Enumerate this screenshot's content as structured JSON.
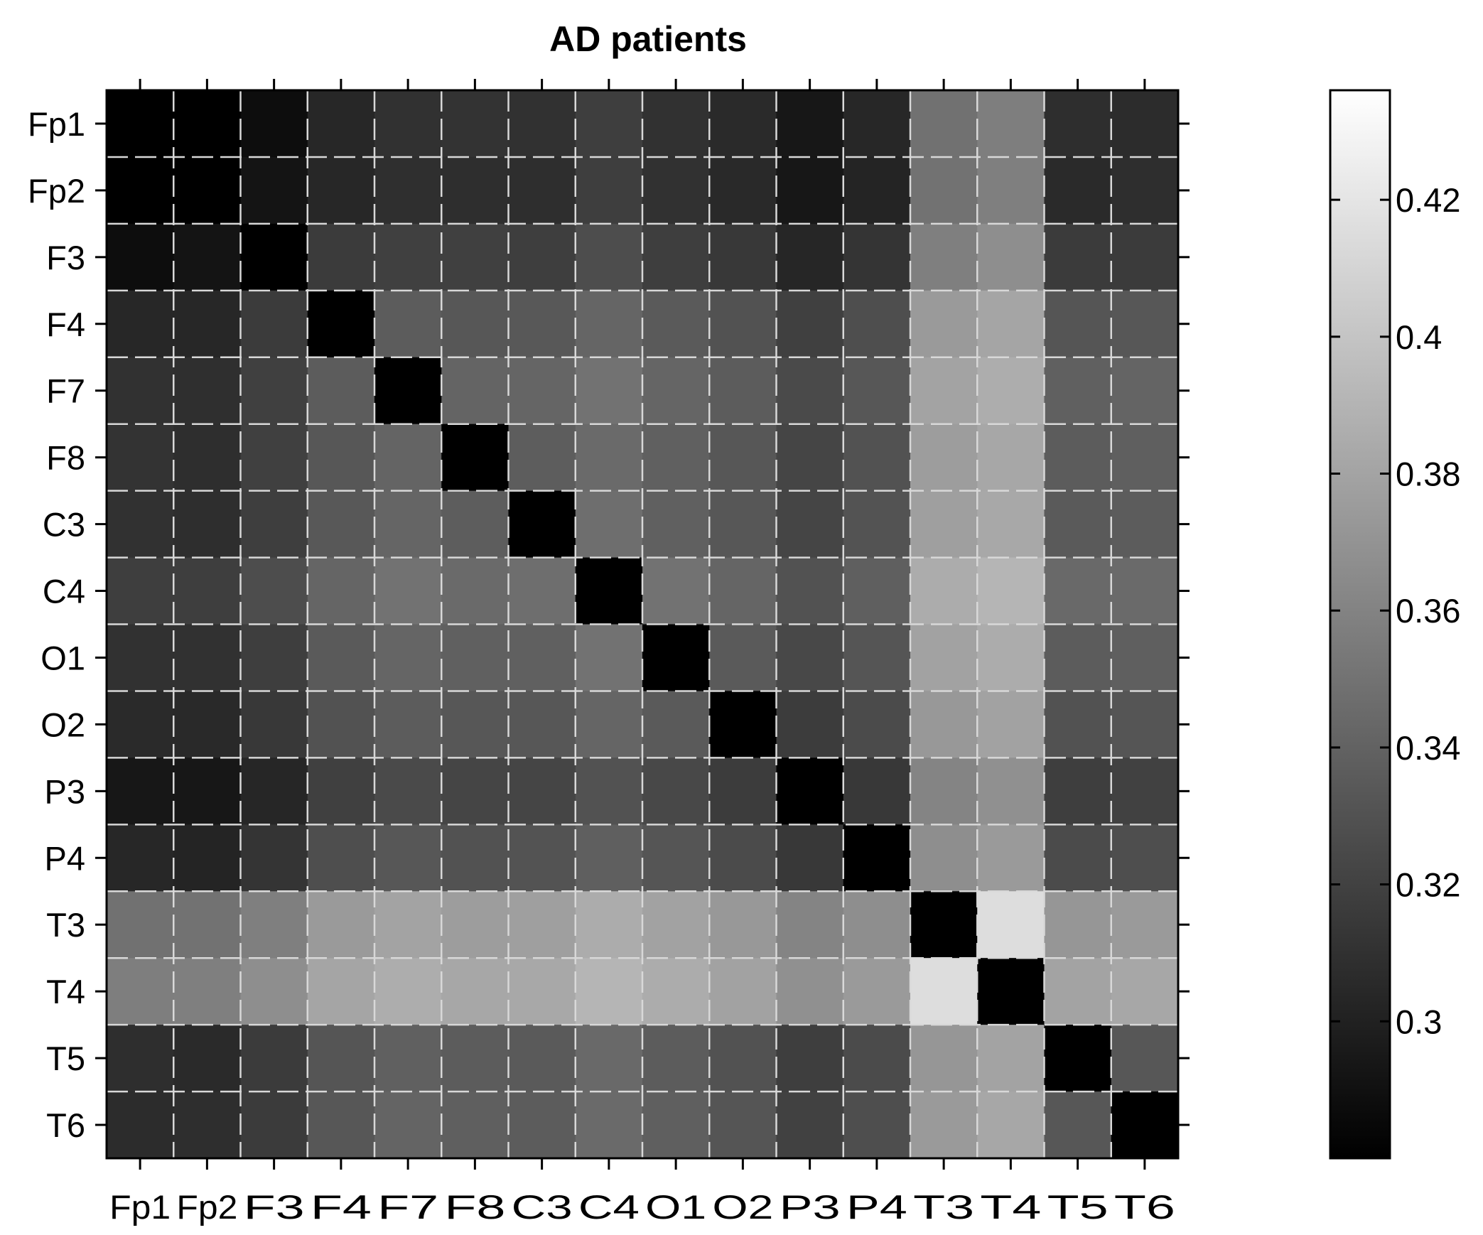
{
  "chart_data": {
    "type": "heatmap",
    "title": "AD patients",
    "xlabel": "",
    "ylabel": "",
    "x_categories": [
      "Fp1",
      "Fp2",
      "F3",
      "F4",
      "F7",
      "F8",
      "C3",
      "C4",
      "O1",
      "O2",
      "P3",
      "P4",
      "T3",
      "T4",
      "T5",
      "T6"
    ],
    "y_categories": [
      "Fp1",
      "Fp2",
      "F3",
      "F4",
      "F7",
      "F8",
      "C3",
      "C4",
      "O1",
      "O2",
      "P3",
      "P4",
      "T3",
      "T4",
      "T5",
      "T6"
    ],
    "colormap": "gray",
    "grid": true,
    "colorbar": {
      "min": 0.28,
      "max": 0.436,
      "ticks": [
        0.3,
        0.32,
        0.34,
        0.36,
        0.38,
        0.4,
        0.42
      ],
      "tick_labels": [
        "0.3",
        "0.32",
        "0.34",
        "0.36",
        "0.38",
        "0.4",
        "0.42"
      ],
      "placement": "right"
    },
    "values": [
      [
        0.28,
        0.28,
        0.288,
        0.304,
        0.31,
        0.311,
        0.31,
        0.318,
        0.31,
        0.306,
        0.294,
        0.304,
        0.349,
        0.357,
        0.308,
        0.307
      ],
      [
        0.28,
        0.28,
        0.292,
        0.304,
        0.309,
        0.308,
        0.308,
        0.318,
        0.31,
        0.305,
        0.294,
        0.302,
        0.35,
        0.358,
        0.306,
        0.308
      ],
      [
        0.288,
        0.292,
        0.28,
        0.316,
        0.319,
        0.319,
        0.318,
        0.327,
        0.318,
        0.314,
        0.303,
        0.312,
        0.358,
        0.367,
        0.316,
        0.316
      ],
      [
        0.304,
        0.304,
        0.316,
        0.28,
        0.336,
        0.333,
        0.334,
        0.342,
        0.335,
        0.33,
        0.319,
        0.328,
        0.374,
        0.381,
        0.332,
        0.333
      ],
      [
        0.31,
        0.309,
        0.319,
        0.336,
        0.28,
        0.341,
        0.342,
        0.35,
        0.342,
        0.336,
        0.325,
        0.333,
        0.38,
        0.386,
        0.339,
        0.341
      ],
      [
        0.311,
        0.308,
        0.319,
        0.333,
        0.341,
        0.28,
        0.337,
        0.345,
        0.339,
        0.333,
        0.322,
        0.33,
        0.376,
        0.382,
        0.336,
        0.338
      ],
      [
        0.31,
        0.308,
        0.318,
        0.334,
        0.342,
        0.337,
        0.28,
        0.347,
        0.339,
        0.333,
        0.322,
        0.331,
        0.377,
        0.383,
        0.335,
        0.336
      ],
      [
        0.318,
        0.318,
        0.327,
        0.342,
        0.35,
        0.345,
        0.347,
        0.28,
        0.35,
        0.342,
        0.33,
        0.338,
        0.385,
        0.391,
        0.344,
        0.345
      ],
      [
        0.31,
        0.31,
        0.318,
        0.335,
        0.342,
        0.339,
        0.339,
        0.35,
        0.28,
        0.335,
        0.324,
        0.332,
        0.379,
        0.385,
        0.336,
        0.338
      ],
      [
        0.306,
        0.305,
        0.314,
        0.33,
        0.336,
        0.333,
        0.333,
        0.342,
        0.335,
        0.28,
        0.317,
        0.326,
        0.373,
        0.379,
        0.33,
        0.332
      ],
      [
        0.294,
        0.294,
        0.303,
        0.319,
        0.325,
        0.322,
        0.322,
        0.33,
        0.324,
        0.317,
        0.28,
        0.314,
        0.361,
        0.368,
        0.318,
        0.32
      ],
      [
        0.304,
        0.302,
        0.312,
        0.328,
        0.333,
        0.33,
        0.331,
        0.338,
        0.332,
        0.326,
        0.314,
        0.28,
        0.367,
        0.374,
        0.326,
        0.328
      ],
      [
        0.349,
        0.35,
        0.358,
        0.374,
        0.38,
        0.376,
        0.377,
        0.385,
        0.379,
        0.373,
        0.361,
        0.367,
        0.28,
        0.415,
        0.372,
        0.374
      ],
      [
        0.357,
        0.358,
        0.367,
        0.381,
        0.386,
        0.382,
        0.383,
        0.391,
        0.385,
        0.379,
        0.368,
        0.374,
        0.415,
        0.28,
        0.38,
        0.382
      ],
      [
        0.308,
        0.306,
        0.316,
        0.332,
        0.339,
        0.336,
        0.335,
        0.344,
        0.336,
        0.33,
        0.318,
        0.326,
        0.372,
        0.38,
        0.28,
        0.333
      ],
      [
        0.307,
        0.308,
        0.316,
        0.333,
        0.341,
        0.338,
        0.336,
        0.345,
        0.338,
        0.332,
        0.32,
        0.328,
        0.374,
        0.382,
        0.333,
        0.28
      ]
    ]
  }
}
